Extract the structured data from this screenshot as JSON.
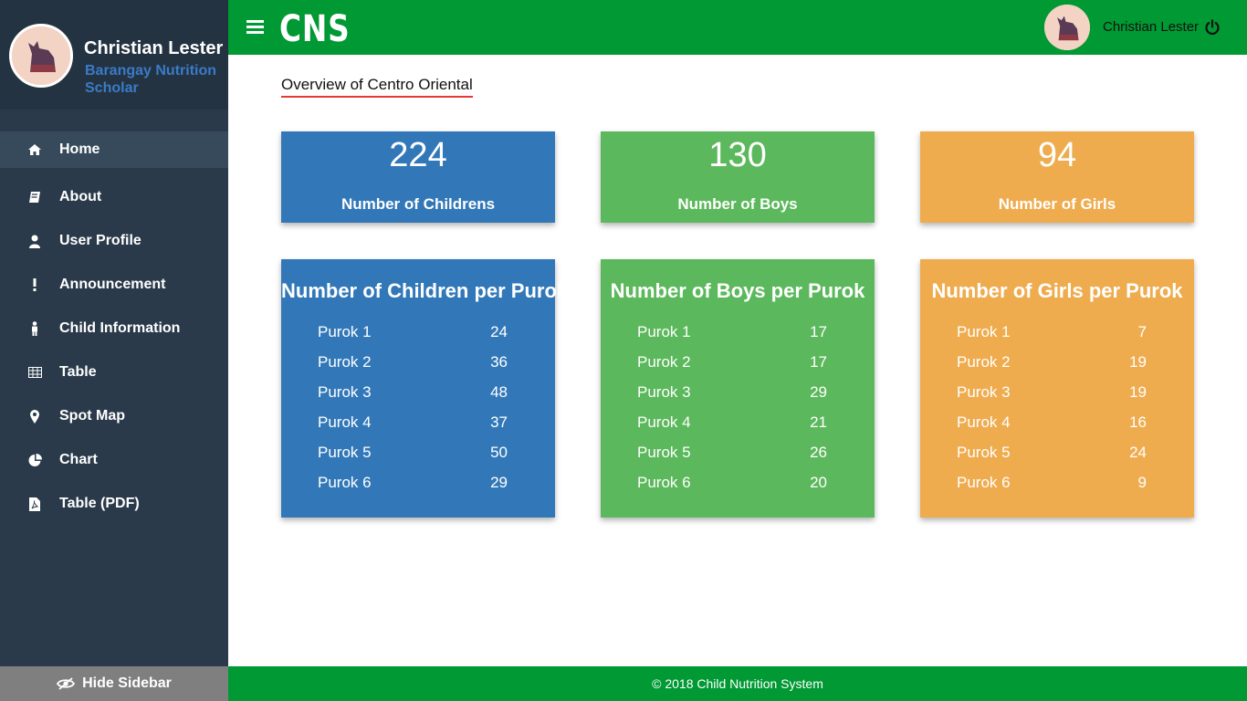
{
  "sidebar": {
    "user_name": "Christian Lester",
    "user_role": "Barangay Nutrition Scholar",
    "nav": [
      {
        "label": "Home",
        "icon": "home-icon"
      },
      {
        "label": "About",
        "icon": "book-icon"
      },
      {
        "label": "User Profile",
        "icon": "user-icon"
      },
      {
        "label": "Announcement",
        "icon": "exclamation-icon"
      },
      {
        "label": "Child Information",
        "icon": "child-icon"
      },
      {
        "label": "Table",
        "icon": "table-icon"
      },
      {
        "label": "Spot Map",
        "icon": "map-marker-icon"
      },
      {
        "label": "Chart",
        "icon": "pie-chart-icon"
      },
      {
        "label": "Table (PDF)",
        "icon": "pdf-file-icon"
      }
    ],
    "hide_label": "Hide Sidebar"
  },
  "header": {
    "title": "CNS",
    "user_name": "Christian Lester"
  },
  "main": {
    "overview_title": "Overview of Centro Oriental",
    "stats": [
      {
        "value": "224",
        "label": "Number of Childrens"
      },
      {
        "value": "130",
        "label": "Number of Boys"
      },
      {
        "value": "94",
        "label": "Number of Girls"
      }
    ],
    "lists": [
      {
        "title": "Number of Children per Purok",
        "rows": [
          {
            "name": "Purok 1",
            "value": "24"
          },
          {
            "name": "Purok 2",
            "value": "36"
          },
          {
            "name": "Purok 3",
            "value": "48"
          },
          {
            "name": "Purok 4",
            "value": "37"
          },
          {
            "name": "Purok 5",
            "value": "50"
          },
          {
            "name": "Purok 6",
            "value": "29"
          }
        ]
      },
      {
        "title": "Number of Boys per Purok",
        "rows": [
          {
            "name": "Purok 1",
            "value": "17"
          },
          {
            "name": "Purok 2",
            "value": "17"
          },
          {
            "name": "Purok 3",
            "value": "29"
          },
          {
            "name": "Purok 4",
            "value": "21"
          },
          {
            "name": "Purok 5",
            "value": "26"
          },
          {
            "name": "Purok 6",
            "value": "20"
          }
        ]
      },
      {
        "title": "Number of Girls per Purok",
        "rows": [
          {
            "name": "Purok 1",
            "value": "7"
          },
          {
            "name": "Purok 2",
            "value": "19"
          },
          {
            "name": "Purok 3",
            "value": "19"
          },
          {
            "name": "Purok 4",
            "value": "16"
          },
          {
            "name": "Purok 5",
            "value": "24"
          },
          {
            "name": "Purok 6",
            "value": "9"
          }
        ]
      }
    ]
  },
  "footer": {
    "text": "© 2018 Child Nutrition System"
  },
  "colors": {
    "header_green": "#009933",
    "sidebar_dark": "#2a3a4a",
    "card_blue": "#3278b8",
    "card_green": "#5cb85c",
    "card_orange": "#efac4f",
    "role_blue": "#3a7bc8",
    "underline_red": "#e53935"
  }
}
